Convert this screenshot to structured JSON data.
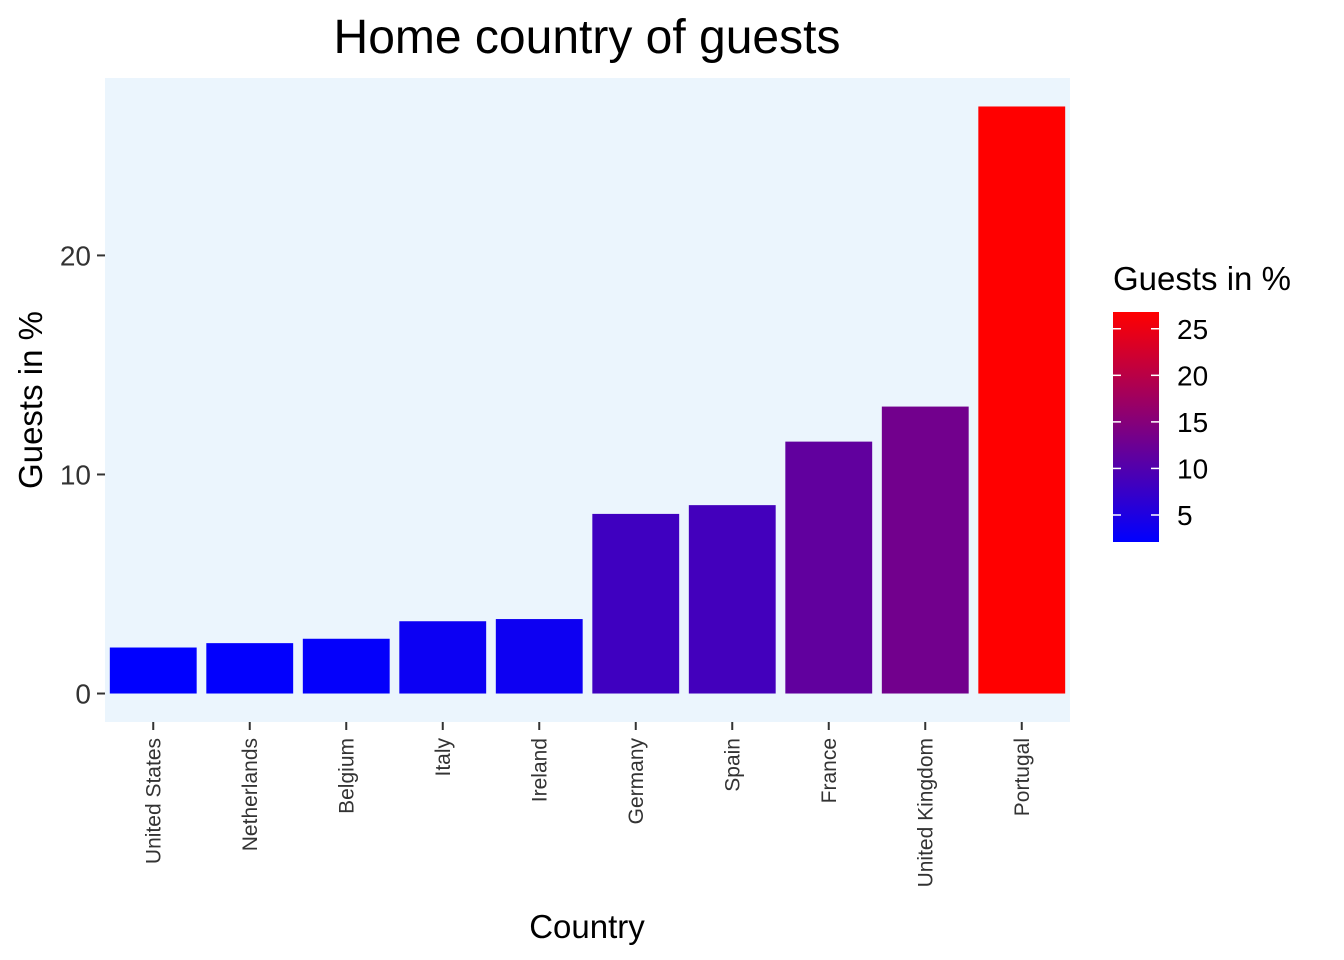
{
  "chart_data": {
    "type": "bar",
    "title": "Home country of guests",
    "xlabel": "Country",
    "ylabel": "Guests in %",
    "categories": [
      "United States",
      "Netherlands",
      "Belgium",
      "Italy",
      "Ireland",
      "Germany",
      "Spain",
      "France",
      "United Kingdom",
      "Portugal"
    ],
    "values": [
      2.1,
      2.3,
      2.5,
      3.3,
      3.4,
      8.2,
      8.6,
      11.5,
      13.1,
      26.8
    ],
    "y_ticks": [
      0,
      10,
      20
    ],
    "ylim": [
      -1.3,
      28.1
    ],
    "background_color": "#ebf5fd",
    "legend": {
      "title": "Guests in %",
      "position": "right",
      "ticks": [
        5,
        10,
        15,
        20,
        25
      ],
      "min": 2.1,
      "max": 26.8,
      "low_color": "#0000ff",
      "high_color": "#ff0000"
    }
  }
}
